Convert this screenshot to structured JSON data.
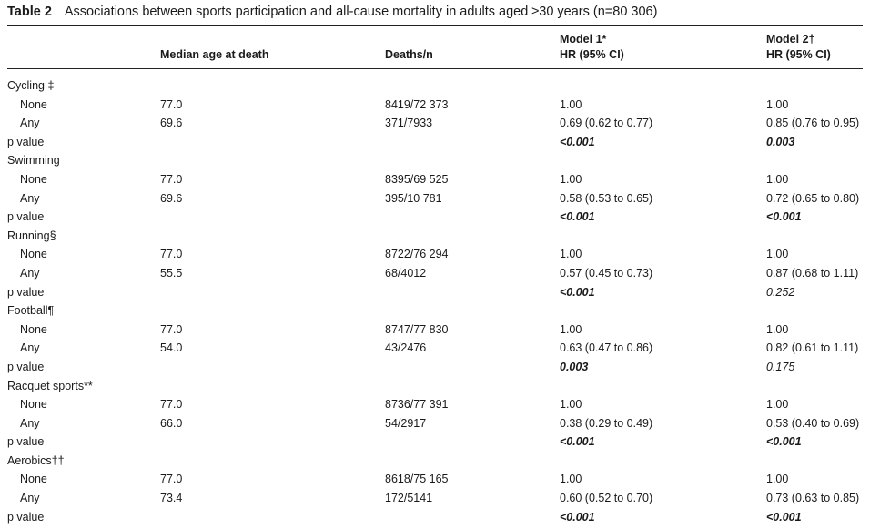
{
  "table": {
    "label": "Table 2",
    "title": "Associations between sports participation and all-cause mortality in adults aged ≥30 years (n=80 306)",
    "headers": {
      "age": "Median age at death",
      "deaths": "Deaths/n",
      "model1_line1": "Model 1*",
      "model1_line2": "HR (95% CI)",
      "model2_line1": "Model 2†",
      "model2_line2": "HR (95% CI)"
    },
    "rows": [
      {
        "type": "group",
        "label": "Cycling ‡"
      },
      {
        "type": "data",
        "label": "None",
        "age": "77.0",
        "deaths": "8419/72 373",
        "m1": "1.00",
        "m2": "1.00"
      },
      {
        "type": "data",
        "label": "Any",
        "age": "69.6",
        "deaths": "371/7933",
        "m1": "0.69 (0.62 to 0.77)",
        "m2": "0.85 (0.76 to 0.95)"
      },
      {
        "type": "p",
        "label": "p value",
        "m1": "<0.001",
        "m1_sig": true,
        "m2": "0.003",
        "m2_sig": true
      },
      {
        "type": "group",
        "label": "Swimming"
      },
      {
        "type": "data",
        "label": "None",
        "age": "77.0",
        "deaths": "8395/69 525",
        "m1": "1.00",
        "m2": "1.00"
      },
      {
        "type": "data",
        "label": "Any",
        "age": "69.6",
        "deaths": "395/10 781",
        "m1": "0.58 (0.53 to 0.65)",
        "m2": "0.72 (0.65 to 0.80)"
      },
      {
        "type": "p",
        "label": "p value",
        "m1": "<0.001",
        "m1_sig": true,
        "m2": "<0.001",
        "m2_sig": true
      },
      {
        "type": "group",
        "label": "Running§"
      },
      {
        "type": "data",
        "label": "None",
        "age": "77.0",
        "deaths": "8722/76 294",
        "m1": "1.00",
        "m2": "1.00"
      },
      {
        "type": "data",
        "label": "Any",
        "age": "55.5",
        "deaths": "68/4012",
        "m1": "0.57 (0.45 to 0.73)",
        "m2": "0.87 (0.68 to 1.11)"
      },
      {
        "type": "p",
        "label": "p value",
        "m1": "<0.001",
        "m1_sig": true,
        "m2": "0.252",
        "m2_sig": false
      },
      {
        "type": "group",
        "label": "Football¶"
      },
      {
        "type": "data",
        "label": "None",
        "age": "77.0",
        "deaths": "8747/77 830",
        "m1": "1.00",
        "m2": "1.00"
      },
      {
        "type": "data",
        "label": "Any",
        "age": "54.0",
        "deaths": "43/2476",
        "m1": "0.63 (0.47 to 0.86)",
        "m2": "0.82 (0.61 to 1.11)"
      },
      {
        "type": "p",
        "label": "p value",
        "m1": "0.003",
        "m1_sig": true,
        "m2": "0.175",
        "m2_sig": false
      },
      {
        "type": "group",
        "label": "Racquet sports**"
      },
      {
        "type": "data",
        "label": "None",
        "age": "77.0",
        "deaths": "8736/77 391",
        "m1": "1.00",
        "m2": "1.00"
      },
      {
        "type": "data",
        "label": "Any",
        "age": "66.0",
        "deaths": "54/2917",
        "m1": "0.38 (0.29 to 0.49)",
        "m2": "0.53 (0.40 to 0.69)"
      },
      {
        "type": "p",
        "label": "p value",
        "m1": "<0.001",
        "m1_sig": true,
        "m2": "<0.001",
        "m2_sig": true
      },
      {
        "type": "group",
        "label": "Aerobics††"
      },
      {
        "type": "data",
        "label": "None",
        "age": "77.0",
        "deaths": "8618/75 165",
        "m1": "1.00",
        "m2": "1.00"
      },
      {
        "type": "data",
        "label": "Any",
        "age": "73.4",
        "deaths": "172/5141",
        "m1": "0.60 (0.52 to 0.70)",
        "m2": "0.73 (0.63 to 0.85)"
      },
      {
        "type": "p",
        "label": "p value",
        "m1": "<0.001",
        "m1_sig": true,
        "m2": "<0.001",
        "m2_sig": true
      }
    ]
  }
}
